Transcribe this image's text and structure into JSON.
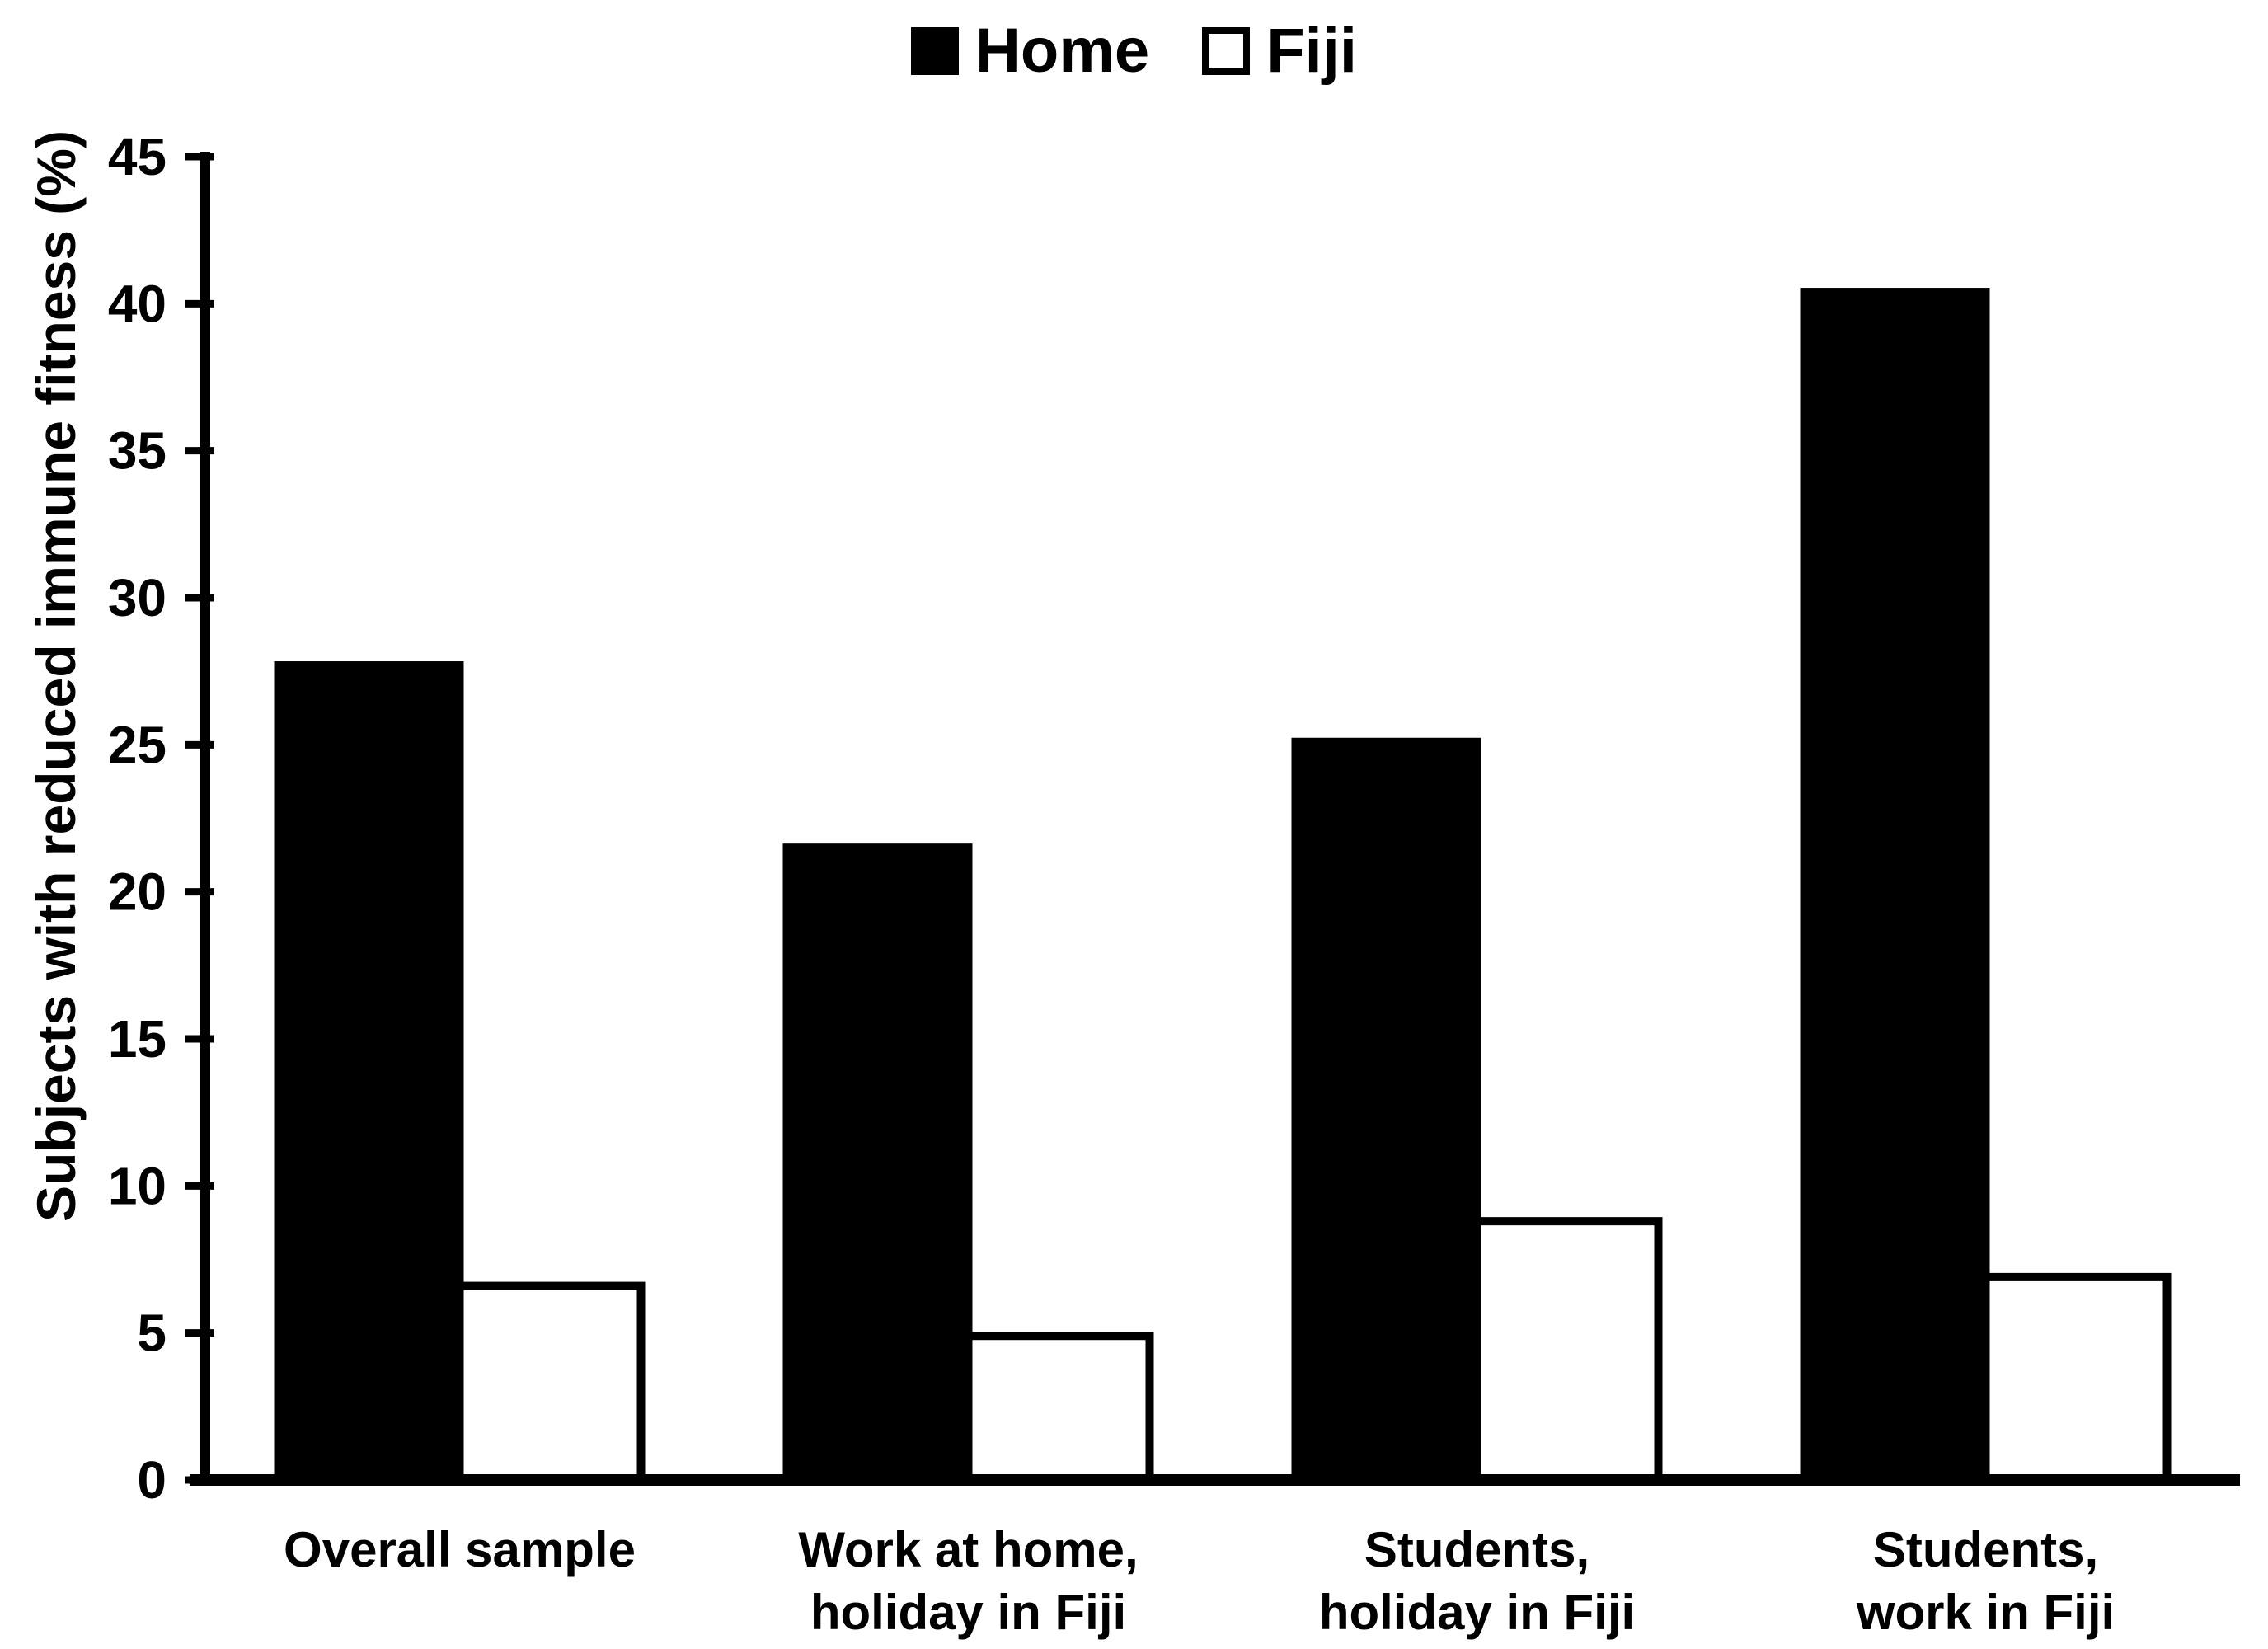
{
  "figure": {
    "background": "#ffffff",
    "ink": "#000000"
  },
  "chart_data": {
    "type": "bar",
    "title": "",
    "ylabel": "Subjects with reduced immune fitness (%)",
    "xlabel": "",
    "ylim": [
      0,
      45
    ],
    "ytick_step": 5,
    "yticks": [
      0,
      5,
      10,
      15,
      20,
      25,
      30,
      35,
      40,
      45
    ],
    "grid": false,
    "legend_position": "top-center",
    "categories": [
      "Overall sample",
      "Work at home, holiday in Fiji",
      "Students, holiday in Fiji",
      "Students, work in Fiji"
    ],
    "category_lines": [
      [
        "Overall sample"
      ],
      [
        "Work at home,",
        "holiday in Fiji"
      ],
      [
        "Students,",
        "holiday in Fiji"
      ],
      [
        "Students,",
        "work in Fiji"
      ]
    ],
    "series": [
      {
        "name": "Home",
        "fill": "#000000",
        "stroke": "#000000",
        "values": [
          27.7,
          21.5,
          25.1,
          40.4
        ]
      },
      {
        "name": "Fiji",
        "fill": "#ffffff",
        "stroke": "#000000",
        "values": [
          6.6,
          4.9,
          8.8,
          6.9
        ]
      }
    ]
  }
}
